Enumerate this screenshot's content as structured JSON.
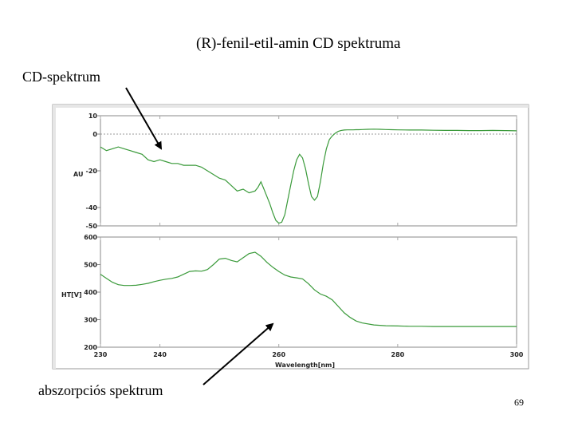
{
  "slide": {
    "title": "(R)-fenil-etil-amin CD spektruma",
    "page_number": "69",
    "callout_cd": "CD-spektrum",
    "callout_abs": "abszorpciós spektrum"
  },
  "colors": {
    "trace": "#3a9a3a",
    "frame": "#8a8a8a",
    "grid": "#a8a8a8",
    "zero_line": "#9a9a9a"
  },
  "chart_data": [
    {
      "type": "line",
      "title": "",
      "xlabel": "",
      "ylabel": "AU",
      "xlim": [
        230,
        300
      ],
      "ylim": [
        -50,
        10
      ],
      "yticks": [
        10,
        0,
        -20,
        -40,
        -50
      ],
      "ytick_labels": [
        "10",
        "0",
        "-20",
        "-40",
        "-50"
      ],
      "reference_line": 0,
      "series": [
        {
          "x": [
            230,
            231,
            232,
            233,
            234,
            235,
            236,
            237,
            238,
            239,
            240,
            241,
            242,
            243,
            244,
            245,
            246,
            247,
            248,
            249,
            250,
            251,
            252,
            253,
            254,
            255,
            256,
            256.5,
            257,
            257.5,
            258,
            258.5,
            259,
            259.5,
            260,
            260.5,
            261,
            261.5,
            262,
            262.5,
            263,
            263.5,
            264,
            264.5,
            265,
            265.5,
            266,
            266.5,
            267,
            267.5,
            268,
            268.5,
            269,
            269.5,
            270,
            270.5,
            271,
            271.5,
            272,
            272.5,
            273,
            273.5,
            274,
            275,
            276,
            277,
            278,
            279,
            280,
            282,
            284,
            286,
            288,
            290,
            292,
            294,
            296,
            298,
            300
          ],
          "values": [
            -7,
            -9,
            -8,
            -7,
            -8,
            -9,
            -10,
            -11,
            -14,
            -15,
            -14,
            -15,
            -16,
            -16,
            -17,
            -17,
            -17,
            -18,
            -20,
            -22,
            -24,
            -25,
            -28,
            -31,
            -30,
            -32,
            -31,
            -29,
            -26,
            -30,
            -34,
            -38,
            -43,
            -47,
            -48.5,
            -48,
            -44,
            -36,
            -28,
            -20,
            -14,
            -11,
            -13,
            -19,
            -27,
            -34,
            -36,
            -34,
            -26,
            -16,
            -8,
            -3,
            -1,
            0.5,
            1.5,
            2,
            2.2,
            2.3,
            2.3,
            2.3,
            2.4,
            2.4,
            2.5,
            2.6,
            2.7,
            2.6,
            2.5,
            2.4,
            2.3,
            2.2,
            2.2,
            2.1,
            2.0,
            2.0,
            1.9,
            1.9,
            2.0,
            1.9,
            1.8
          ]
        }
      ]
    },
    {
      "type": "line",
      "title": "",
      "xlabel": "Wavelength[nm]",
      "ylabel": "HT[V]",
      "xlim": [
        230,
        300
      ],
      "ylim": [
        200,
        600
      ],
      "yticks": [
        600,
        500,
        400,
        300,
        200
      ],
      "xticks": [
        230,
        240,
        260,
        280,
        300
      ],
      "series": [
        {
          "x": [
            230,
            231,
            232,
            233,
            234,
            235,
            236,
            237,
            238,
            239,
            240,
            241,
            242,
            243,
            244,
            245,
            246,
            247,
            248,
            249,
            250,
            251,
            252,
            253,
            254,
            255,
            256,
            257,
            258,
            259,
            260,
            261,
            262,
            263,
            264,
            265,
            266,
            267,
            268,
            269,
            270,
            271,
            272,
            273,
            274,
            276,
            278,
            280,
            282,
            284,
            286,
            288,
            290,
            292,
            294,
            296,
            298,
            300
          ],
          "values": [
            465,
            450,
            436,
            427,
            424,
            424,
            425,
            428,
            432,
            438,
            443,
            447,
            450,
            455,
            465,
            475,
            477,
            476,
            482,
            500,
            520,
            523,
            515,
            510,
            525,
            540,
            545,
            530,
            508,
            490,
            475,
            462,
            455,
            452,
            448,
            430,
            408,
            393,
            385,
            372,
            348,
            325,
            308,
            295,
            288,
            281,
            278,
            277,
            276,
            276,
            275,
            275,
            275,
            275,
            275,
            275,
            275,
            275
          ]
        }
      ]
    }
  ]
}
